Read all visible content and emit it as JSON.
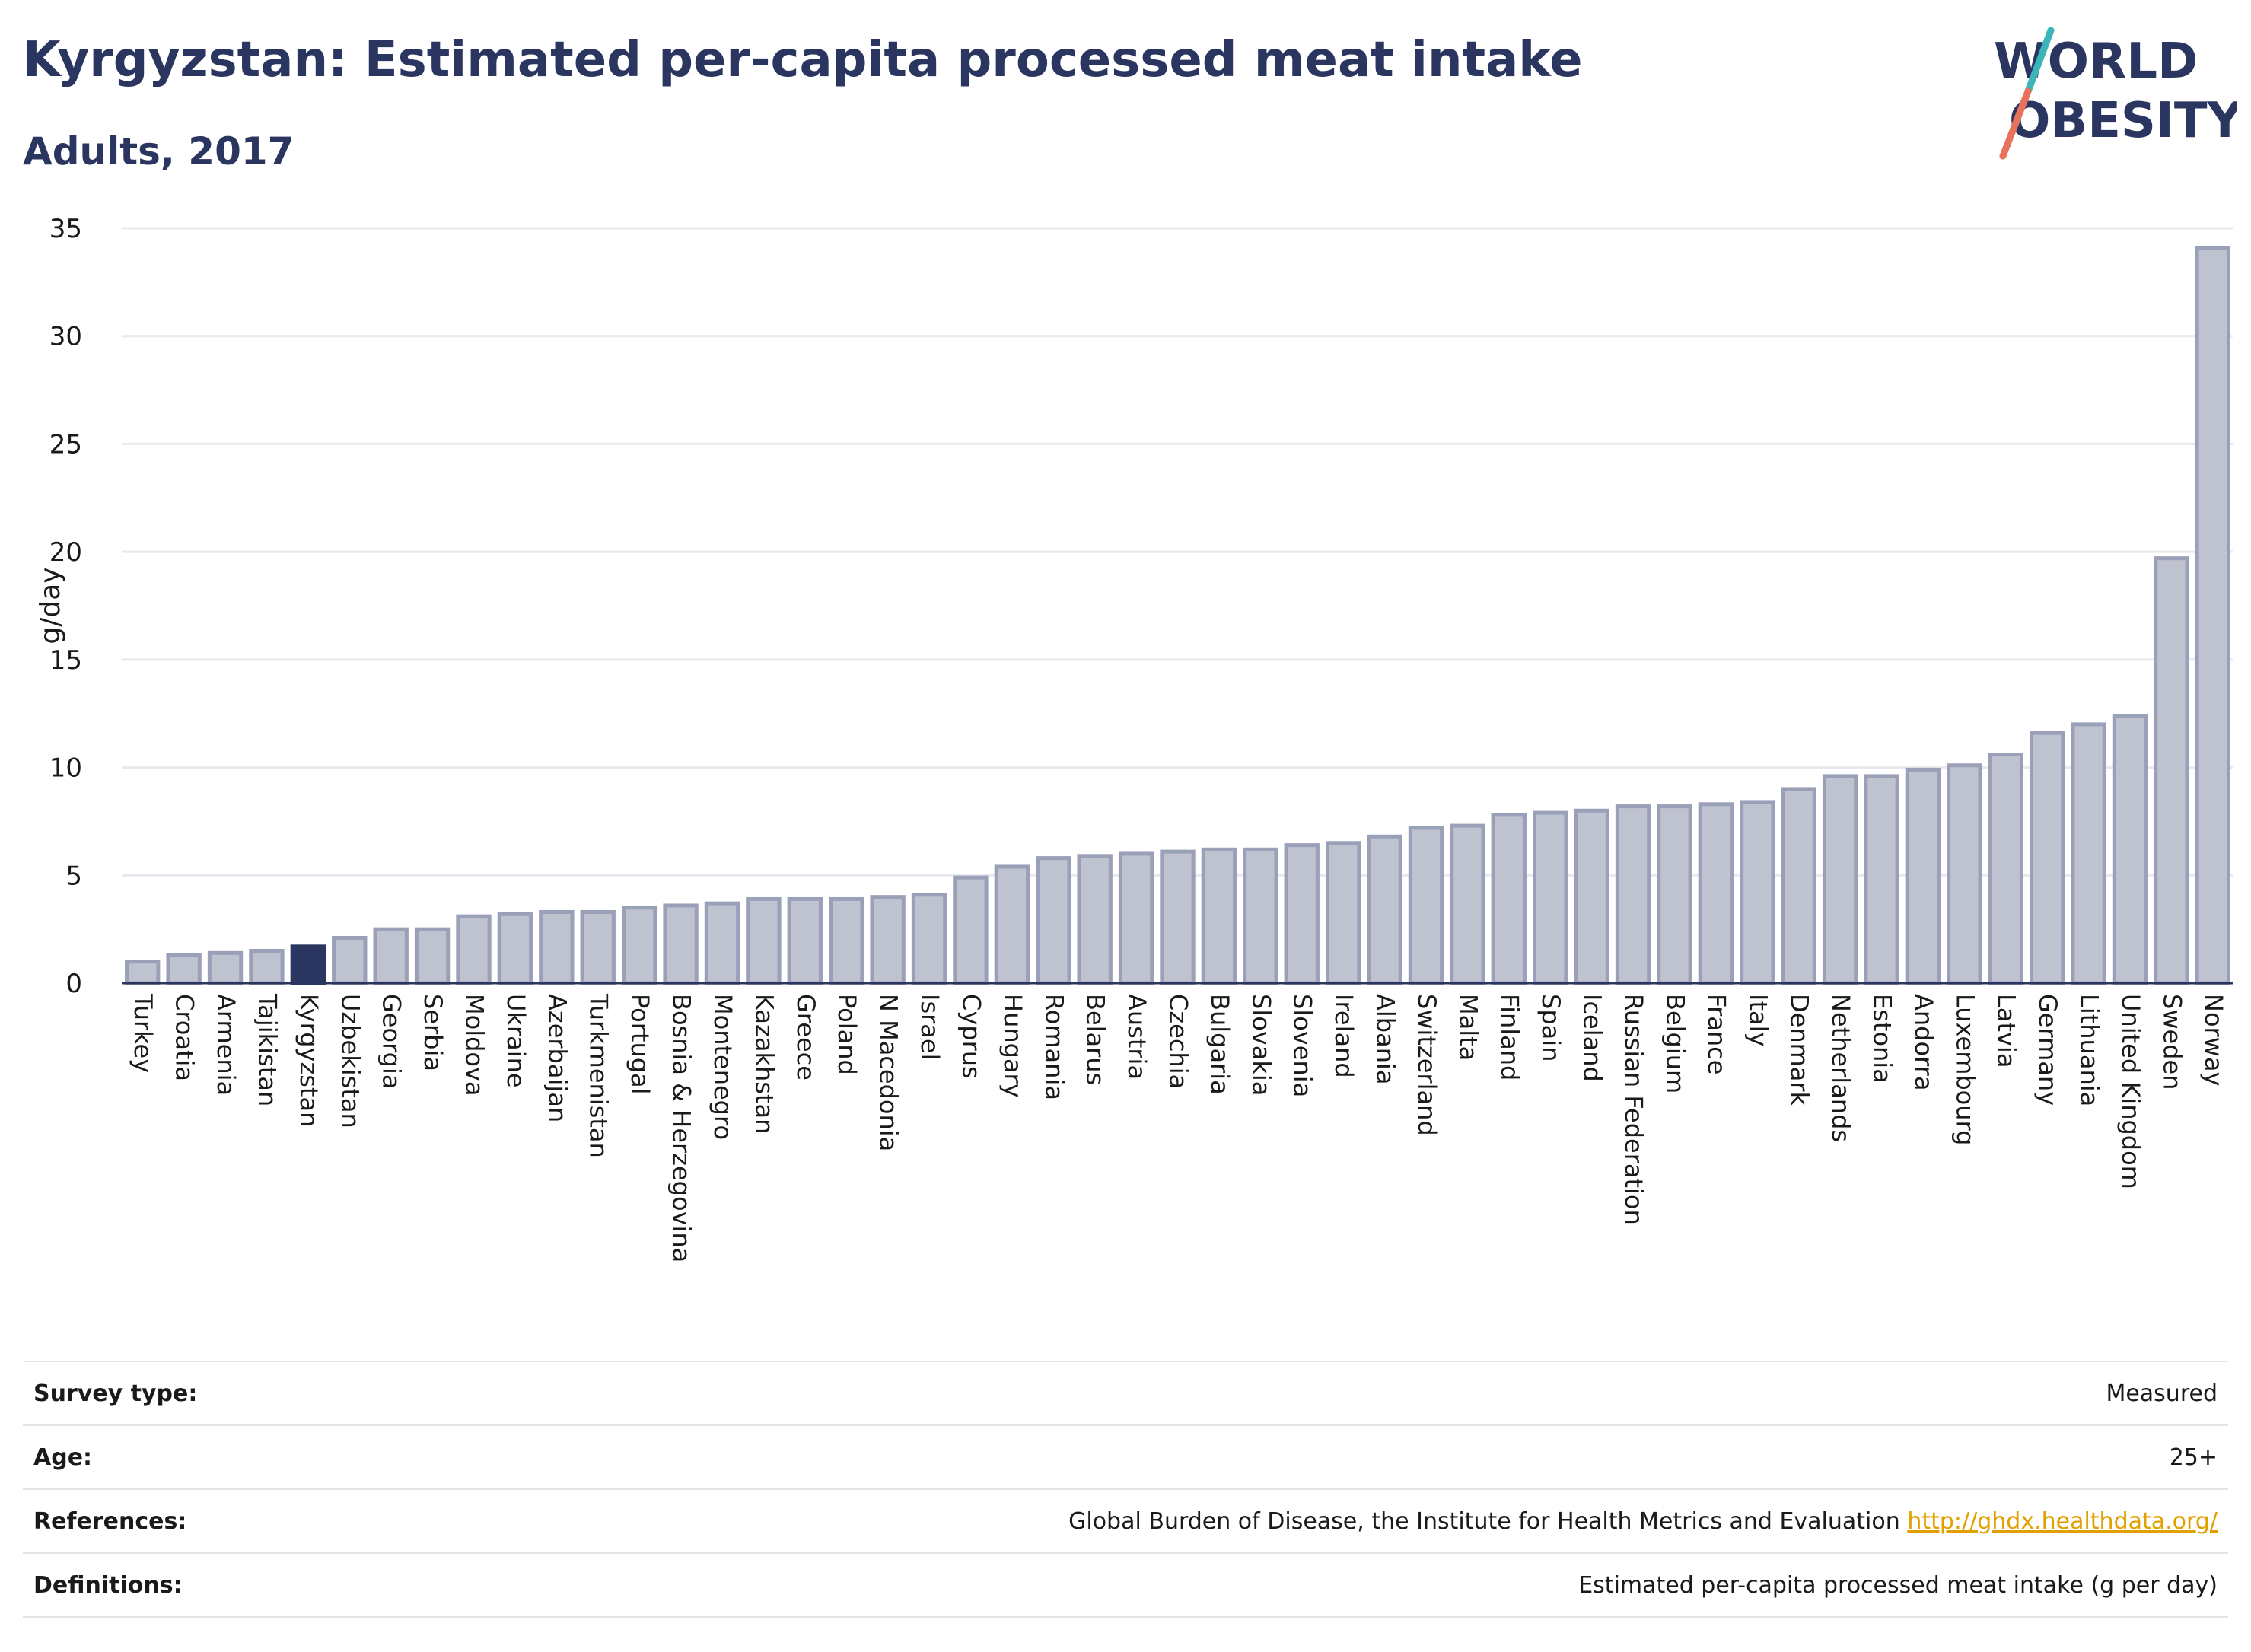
{
  "header": {
    "title": "Kyrgyzstan: Estimated per-capita processed meat intake",
    "subtitle": "Adults, 2017"
  },
  "logo": {
    "line1": "WORLD",
    "line2": "OBESITY",
    "colors": {
      "teal": "#3bb5b8",
      "coral": "#e8735a"
    }
  },
  "chart_data": {
    "type": "bar",
    "title": "Kyrgyzstan: Estimated per-capita processed meat intake",
    "subtitle": "Adults, 2017",
    "xlabel": "",
    "ylabel": "g/day",
    "ylim": [
      0,
      35
    ],
    "yticks": [
      0,
      5,
      10,
      15,
      20,
      25,
      30,
      35
    ],
    "grid": true,
    "highlight": "Kyrgyzstan",
    "colors": {
      "bar": "#bfc2cf",
      "bar_border": "#9aa0b8",
      "highlight": "#2b3660"
    },
    "categories": [
      "Turkey",
      "Croatia",
      "Armenia",
      "Tajikistan",
      "Kyrgyzstan",
      "Uzbekistan",
      "Georgia",
      "Serbia",
      "Moldova",
      "Ukraine",
      "Azerbaijan",
      "Turkmenistan",
      "Portugal",
      "Bosnia & Herzegovina",
      "Montenegro",
      "Kazakhstan",
      "Greece",
      "Poland",
      "N Macedonia",
      "Israel",
      "Cyprus",
      "Hungary",
      "Romania",
      "Belarus",
      "Austria",
      "Czechia",
      "Bulgaria",
      "Slovakia",
      "Slovenia",
      "Ireland",
      "Albania",
      "Switzerland",
      "Malta",
      "Finland",
      "Spain",
      "Iceland",
      "Russian Federation",
      "Belgium",
      "France",
      "Italy",
      "Denmark",
      "Netherlands",
      "Estonia",
      "Andorra",
      "Luxembourg",
      "Latvia",
      "Germany",
      "Lithuania",
      "United Kingdom",
      "Sweden",
      "Norway"
    ],
    "values": [
      1.0,
      1.3,
      1.4,
      1.5,
      1.7,
      2.1,
      2.5,
      2.5,
      3.1,
      3.2,
      3.3,
      3.3,
      3.5,
      3.6,
      3.7,
      3.9,
      3.9,
      3.9,
      4.0,
      4.1,
      4.9,
      5.4,
      5.8,
      5.9,
      6.0,
      6.1,
      6.2,
      6.2,
      6.4,
      6.5,
      6.8,
      7.2,
      7.3,
      7.8,
      7.9,
      8.0,
      8.2,
      8.2,
      8.3,
      8.4,
      9.0,
      9.6,
      9.6,
      9.9,
      10.1,
      10.6,
      11.6,
      12.0,
      12.4,
      19.7,
      34.1
    ]
  },
  "info_table": [
    {
      "key": "Survey type:",
      "value": "Measured",
      "link": ""
    },
    {
      "key": "Age:",
      "value": "25+",
      "link": ""
    },
    {
      "key": "References:",
      "value": "Global Burden of Disease, the Institute for Health Metrics and Evaluation",
      "link": "http://ghdx.healthdata.org/"
    },
    {
      "key": "Definitions:",
      "value": "Estimated per-capita processed meat intake (g per day)",
      "link": ""
    }
  ]
}
